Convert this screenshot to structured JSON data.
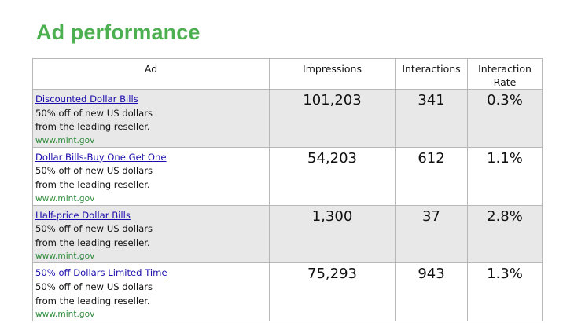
{
  "page": {
    "title": "Ad performance",
    "title_color": "#4caf50"
  },
  "table": {
    "columns": [
      "Ad",
      "Impressions",
      "Interactions",
      "Interaction Rate"
    ],
    "rows": [
      {
        "ad_title": "Discounted Dollar Bills",
        "ad_description": "50% off of new US dollars from the leading reseller.",
        "ad_url": "www.mint.gov",
        "impressions": "101,203",
        "interactions": "341",
        "interaction_rate": "0.3%"
      },
      {
        "ad_title": "Dollar Bills-Buy One Get One",
        "ad_description": "50% off of new US dollars from the leading reseller.",
        "ad_url": "www.mint.gov",
        "impressions": "54,203",
        "interactions": "612",
        "interaction_rate": "1.1%"
      },
      {
        "ad_title": "Half-price Dollar Bills",
        "ad_description": "50% off of new US dollars from the leading reseller.",
        "ad_url": "www.mint.gov",
        "impressions": "1,300",
        "interactions": "37",
        "interaction_rate": "2.8%"
      },
      {
        "ad_title": "50% off Dollars Limited Time",
        "ad_description": "50% off of new US dollars from the leading reseller.",
        "ad_url": "www.mint.gov",
        "impressions": "75,293",
        "interactions": "943",
        "interaction_rate": "1.3%"
      }
    ]
  },
  "colors": {
    "link": "#1a0dab",
    "display_url": "#2e8b3a",
    "row_shading": "#e8e8e8",
    "border": "#b7b7b7"
  }
}
